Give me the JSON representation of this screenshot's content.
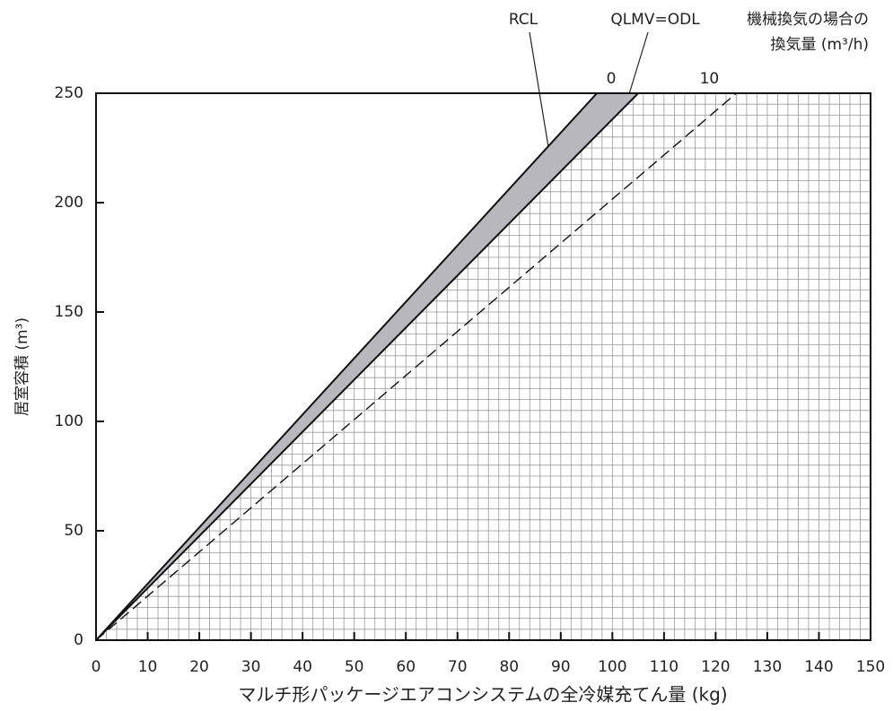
{
  "chart_data": {
    "type": "line",
    "xlabel": "マルチ形パッケージエアコンシステムの全冷媒充てん量 (kg)",
    "ylabel": "居室容積 (m³)",
    "xlim": [
      0,
      150
    ],
    "xticks": [
      0,
      10,
      20,
      30,
      40,
      50,
      60,
      70,
      80,
      90,
      100,
      110,
      120,
      130,
      140,
      150
    ],
    "ylim": [
      0,
      250
    ],
    "yticks": [
      0,
      50,
      100,
      150,
      200,
      250
    ],
    "ventilation_title": [
      "機械換気の場合の",
      "換気量 (m³/h)"
    ],
    "series": [
      {
        "name": "RCL",
        "color": "#111111",
        "x": [
          0,
          97
        ],
        "values": [
          0,
          250
        ]
      },
      {
        "name": "QLMV=ODL",
        "color": "#111111",
        "ventilation": 0,
        "x": [
          0,
          105
        ],
        "values": [
          0,
          250
        ]
      },
      {
        "color": "#111111",
        "ventilation": 10,
        "dashed": true,
        "x": [
          0,
          124
        ],
        "values": [
          0,
          250
        ]
      }
    ]
  }
}
